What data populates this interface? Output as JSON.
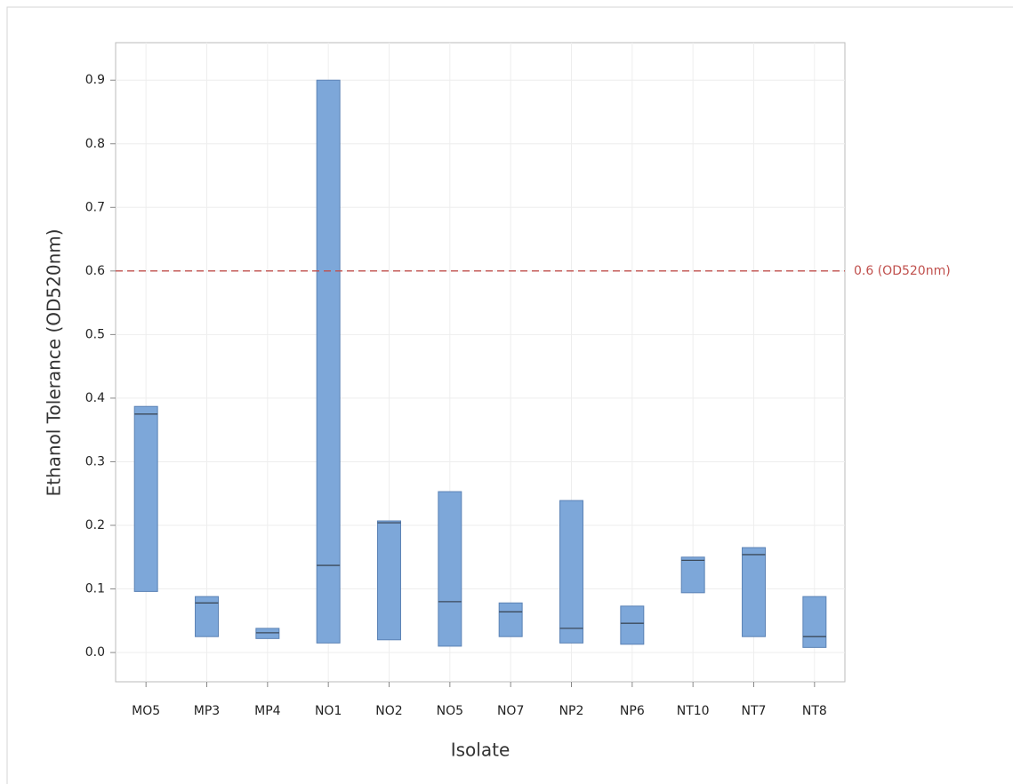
{
  "chart_data": {
    "type": "box",
    "x_label": "Isolate",
    "y_label": "Ethanol Tolerance (OD520nm)",
    "categories": [
      "MO5",
      "MP3",
      "MP4",
      "NO1",
      "NO2",
      "NO5",
      "NO7",
      "NP2",
      "NP6",
      "NT10",
      "NT7",
      "NT8"
    ],
    "boxes": [
      {
        "q1": 0.096,
        "median": 0.375,
        "q3": 0.387
      },
      {
        "q1": 0.025,
        "median": 0.078,
        "q3": 0.088
      },
      {
        "q1": 0.022,
        "median": 0.031,
        "q3": 0.038
      },
      {
        "q1": 0.015,
        "median": 0.137,
        "q3": 0.9
      },
      {
        "q1": 0.02,
        "median": 0.204,
        "q3": 0.207
      },
      {
        "q1": 0.01,
        "median": 0.08,
        "q3": 0.253
      },
      {
        "q1": 0.025,
        "median": 0.064,
        "q3": 0.078
      },
      {
        "q1": 0.015,
        "median": 0.038,
        "q3": 0.239
      },
      {
        "q1": 0.013,
        "median": 0.046,
        "q3": 0.073
      },
      {
        "q1": 0.094,
        "median": 0.145,
        "q3": 0.15
      },
      {
        "q1": 0.025,
        "median": 0.154,
        "q3": 0.165
      },
      {
        "q1": 0.008,
        "median": 0.025,
        "q3": 0.088
      }
    ],
    "color": "#7da7d9",
    "ylim": [
      -0.046,
      0.959
    ],
    "yticks": [
      {
        "value": 0,
        "label": "0.0"
      },
      0.1,
      0.2,
      0.3,
      0.4,
      0.5,
      0.6,
      0.7,
      0.8,
      0.9
    ],
    "grid": true,
    "reference_lines": [
      {
        "value": 0.6,
        "label": "0.6 (OD520nm)",
        "color": "#c0504d"
      }
    ]
  }
}
